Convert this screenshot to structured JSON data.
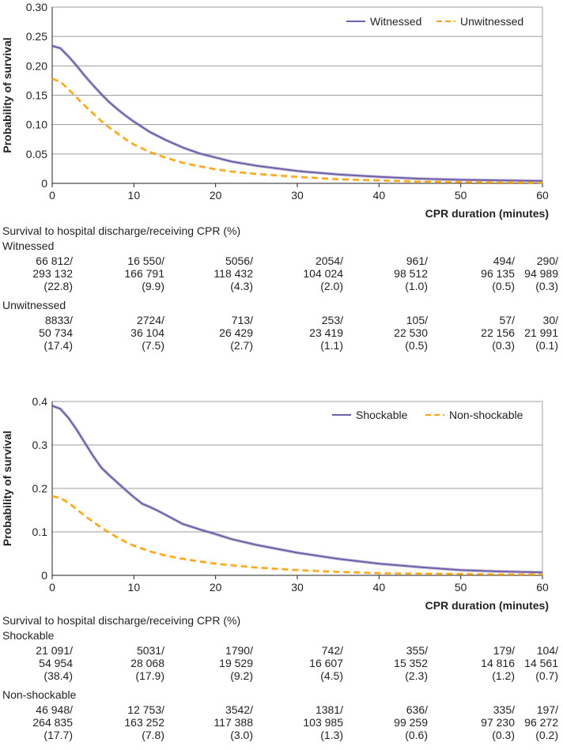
{
  "chart_data": [
    {
      "type": "line",
      "id": "top",
      "ylabel": "Probability of survival",
      "xlabel": "CPR duration (minutes)",
      "xlim": [
        0,
        60
      ],
      "ylim": [
        0,
        0.3
      ],
      "xticks": [
        "0",
        "10",
        "20",
        "30",
        "40",
        "50",
        "60"
      ],
      "yticks": [
        "0",
        "0.05",
        "0.10",
        "0.15",
        "0.20",
        "0.25",
        "0.30"
      ],
      "legend_position": "top-right",
      "series": [
        {
          "name": "Witnessed",
          "color": "#6f5fa8",
          "style": "solid",
          "x": [
            0,
            1,
            2,
            3,
            4,
            5,
            6,
            7,
            8,
            9,
            10,
            12,
            14,
            16,
            18,
            20,
            22,
            25,
            30,
            35,
            40,
            45,
            50,
            55,
            60
          ],
          "y": [
            0.234,
            0.23,
            0.216,
            0.2,
            0.183,
            0.167,
            0.152,
            0.138,
            0.126,
            0.115,
            0.105,
            0.087,
            0.073,
            0.061,
            0.051,
            0.044,
            0.037,
            0.03,
            0.021,
            0.015,
            0.011,
            0.008,
            0.006,
            0.005,
            0.004
          ]
        },
        {
          "name": "Unwitnessed",
          "color": "#f7a30e",
          "style": "dashed",
          "x": [
            0,
            1,
            2,
            3,
            4,
            5,
            6,
            7,
            8,
            9,
            10,
            12,
            14,
            16,
            18,
            20,
            22,
            25,
            30,
            35,
            40,
            45,
            50,
            55,
            60
          ],
          "y": [
            0.178,
            0.173,
            0.16,
            0.146,
            0.132,
            0.119,
            0.106,
            0.095,
            0.085,
            0.075,
            0.066,
            0.053,
            0.043,
            0.035,
            0.029,
            0.024,
            0.02,
            0.016,
            0.011,
            0.007,
            0.005,
            0.003,
            0.002,
            0.0015,
            0.001
          ]
        }
      ],
      "table": {
        "title": "Survival to hospital discharge/receiving CPR (%)",
        "groups": [
          {
            "label": "Witnessed",
            "cells": [
              [
                "66 812/",
                "293 132",
                "(22.8)"
              ],
              [
                "16 550/",
                "166 791",
                "(9.9)"
              ],
              [
                "5056/",
                "118 432",
                "(4.3)"
              ],
              [
                "2054/",
                "104 024",
                "(2.0)"
              ],
              [
                "961/",
                "98 512",
                "(1.0)"
              ],
              [
                "494/",
                "96 135",
                "(0.5)"
              ],
              [
                "290/",
                "94 989",
                "(0.3)"
              ]
            ]
          },
          {
            "label": "Unwitnessed",
            "cells": [
              [
                "8833/",
                "50 734",
                "(17.4)"
              ],
              [
                "2724/",
                "36 104",
                "(7.5)"
              ],
              [
                "713/",
                "26 429",
                "(2.7)"
              ],
              [
                "253/",
                "23 419",
                "(1.1)"
              ],
              [
                "105/",
                "22 530",
                "(0.5)"
              ],
              [
                "57/",
                "22 156",
                "(0.3)"
              ],
              [
                "30/",
                "21 991",
                "(0.1)"
              ]
            ]
          }
        ]
      }
    },
    {
      "type": "line",
      "id": "bottom",
      "ylabel": "Probability of survival",
      "xlabel": "CPR duration (minutes)",
      "xlim": [
        0,
        60
      ],
      "ylim": [
        0,
        0.4
      ],
      "xticks": [
        "0",
        "10",
        "20",
        "30",
        "40",
        "50",
        "60"
      ],
      "yticks": [
        "0",
        "0.1",
        "0.2",
        "0.3",
        "0.4"
      ],
      "legend_position": "top-right",
      "series": [
        {
          "name": "Shockable",
          "color": "#6f5fa8",
          "style": "solid",
          "x": [
            0,
            1,
            2,
            3,
            4,
            5,
            6,
            7,
            8,
            9,
            10,
            11,
            12,
            13,
            14,
            15,
            16,
            18,
            20,
            22,
            25,
            30,
            35,
            40,
            45,
            50,
            55,
            60
          ],
          "y": [
            0.39,
            0.383,
            0.362,
            0.335,
            0.305,
            0.275,
            0.248,
            0.23,
            0.213,
            0.196,
            0.18,
            0.165,
            0.157,
            0.148,
            0.138,
            0.128,
            0.118,
            0.106,
            0.095,
            0.083,
            0.07,
            0.052,
            0.038,
            0.027,
            0.019,
            0.012,
            0.009,
            0.007
          ]
        },
        {
          "name": "Non-shockable",
          "color": "#f7a30e",
          "style": "dashed",
          "x": [
            0,
            1,
            2,
            3,
            4,
            5,
            6,
            7,
            8,
            9,
            10,
            12,
            14,
            16,
            18,
            20,
            22,
            25,
            30,
            35,
            40,
            45,
            50,
            55,
            60
          ],
          "y": [
            0.182,
            0.178,
            0.167,
            0.152,
            0.137,
            0.123,
            0.11,
            0.098,
            0.087,
            0.077,
            0.068,
            0.055,
            0.045,
            0.038,
            0.032,
            0.027,
            0.023,
            0.018,
            0.012,
            0.008,
            0.005,
            0.004,
            0.003,
            0.002,
            0.002
          ]
        }
      ],
      "table": {
        "title": "Survival to hospital discharge/receiving CPR (%)",
        "groups": [
          {
            "label": "Shockable",
            "cells": [
              [
                "21 091/",
                "54 954",
                "(38.4)"
              ],
              [
                "5031/",
                "28 068",
                "(17.9)"
              ],
              [
                "1790/",
                "19 529",
                "(9.2)"
              ],
              [
                "742/",
                "16 607",
                "(4.5)"
              ],
              [
                "355/",
                "15 352",
                "(2.3)"
              ],
              [
                "179/",
                "14 816",
                "(1.2)"
              ],
              [
                "104/",
                "14 561",
                "(0.7)"
              ]
            ]
          },
          {
            "label": "Non-shockable",
            "cells": [
              [
                "46 948/",
                "264 835",
                "(17.7)"
              ],
              [
                "12 753/",
                "163 252",
                "(7.8)"
              ],
              [
                "3542/",
                "117 388",
                "(3.0)"
              ],
              [
                "1381/",
                "103 985",
                "(1.3)"
              ],
              [
                "636/",
                "99 259",
                "(0.6)"
              ],
              [
                "335/",
                "97 230",
                "(0.3)"
              ],
              [
                "197/",
                "96 272",
                "(0.2)"
              ]
            ]
          }
        ]
      }
    }
  ]
}
